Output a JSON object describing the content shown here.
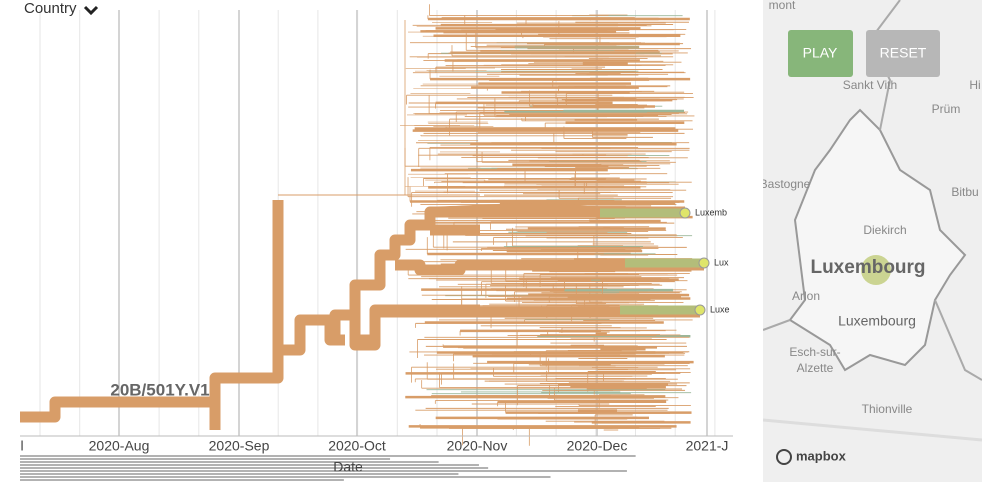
{
  "header": {
    "selector": "Country"
  },
  "tree": {
    "clade_label": "20B/501Y.V1",
    "tip_labels": [
      "Luxemb",
      "Lux",
      "Luxe"
    ]
  },
  "axis": {
    "labels": [
      "l",
      "2020-Aug",
      "2020-Sep",
      "2020-Oct",
      "2020-Nov",
      "2020-Dec",
      "2021-J"
    ],
    "title": "Date"
  },
  "map": {
    "buttons": [
      "PLAY",
      "RESET"
    ],
    "places": [
      "mont",
      "Sankt Vith",
      "Prüm",
      "Hi",
      "Bastogne",
      "Bitbu",
      "Diekirch",
      "Luxembourg",
      "Arlon",
      "Luxembourg",
      "Esch-sur-",
      "Alzette",
      "Thionville"
    ],
    "attribution": "mapbox"
  }
}
